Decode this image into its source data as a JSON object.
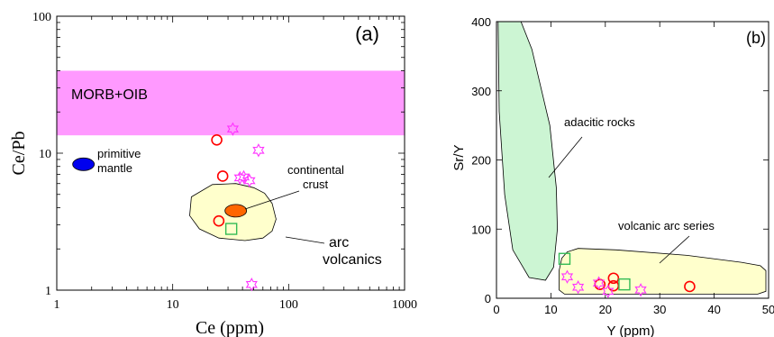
{
  "chart_data": [
    {
      "type": "scatter",
      "panel_label": "(a)",
      "xlabel": "Ce (ppm)",
      "ylabel": "Ce/Pb",
      "xscale": "log",
      "yscale": "log",
      "xlim": [
        1,
        1000
      ],
      "ylim": [
        1,
        100
      ],
      "x_ticks": [
        "1",
        "10",
        "100",
        "1000"
      ],
      "y_ticks": [
        "1",
        "10",
        "100"
      ],
      "field_band": {
        "label": "MORB+OIB",
        "y_range": [
          13.5,
          40
        ],
        "color": "#ff99ff"
      },
      "reference_points": [
        {
          "label": "primitive mantle",
          "x": 1.7,
          "y": 8.3,
          "color": "#0000ee"
        },
        {
          "label": "continental crust",
          "x": 35,
          "y": 3.8,
          "color": "#ff6600"
        }
      ],
      "field_label": "arc volcanics",
      "field_color": "#ffffcc",
      "series": [
        {
          "marker": "circle",
          "color": "#ff0000",
          "points": [
            [
              24,
              12.5
            ],
            [
              27,
              6.8
            ],
            [
              25,
              3.2
            ]
          ]
        },
        {
          "marker": "square",
          "color": "#33bb55",
          "points": [
            [
              32,
              2.8
            ]
          ]
        },
        {
          "marker": "star",
          "color": "#ff33ff",
          "points": [
            [
              33,
              15
            ],
            [
              55,
              10.5
            ],
            [
              38,
              6.6
            ],
            [
              41,
              6.7
            ],
            [
              46,
              6.3
            ],
            [
              48,
              1.1
            ]
          ]
        }
      ]
    },
    {
      "type": "scatter",
      "panel_label": "(b)",
      "xlabel": "Y (ppm)",
      "ylabel": "Sr/Y",
      "xlim": [
        0,
        50
      ],
      "ylim": [
        0,
        400
      ],
      "x_ticks": [
        "0",
        "10",
        "20",
        "30",
        "40",
        "50"
      ],
      "y_ticks": [
        "0",
        "100",
        "200",
        "300",
        "400"
      ],
      "fields": [
        {
          "label": "adacitic rocks",
          "color": "#ccf5d3"
        },
        {
          "label": "volcanic arc series",
          "color": "#ffffcc"
        }
      ],
      "series": [
        {
          "marker": "circle",
          "color": "#ff0000",
          "points": [
            [
              21.5,
              29
            ],
            [
              21.5,
              18
            ],
            [
              19,
              20
            ],
            [
              35.5,
              17
            ]
          ]
        },
        {
          "marker": "square",
          "color": "#33bb55",
          "points": [
            [
              12.5,
              57
            ],
            [
              23.5,
              20
            ]
          ]
        },
        {
          "marker": "star",
          "color": "#ff33ff",
          "points": [
            [
              13,
              31
            ],
            [
              15,
              16
            ],
            [
              18.8,
              22
            ],
            [
              20.5,
              10
            ],
            [
              26.5,
              12
            ]
          ]
        }
      ]
    }
  ]
}
